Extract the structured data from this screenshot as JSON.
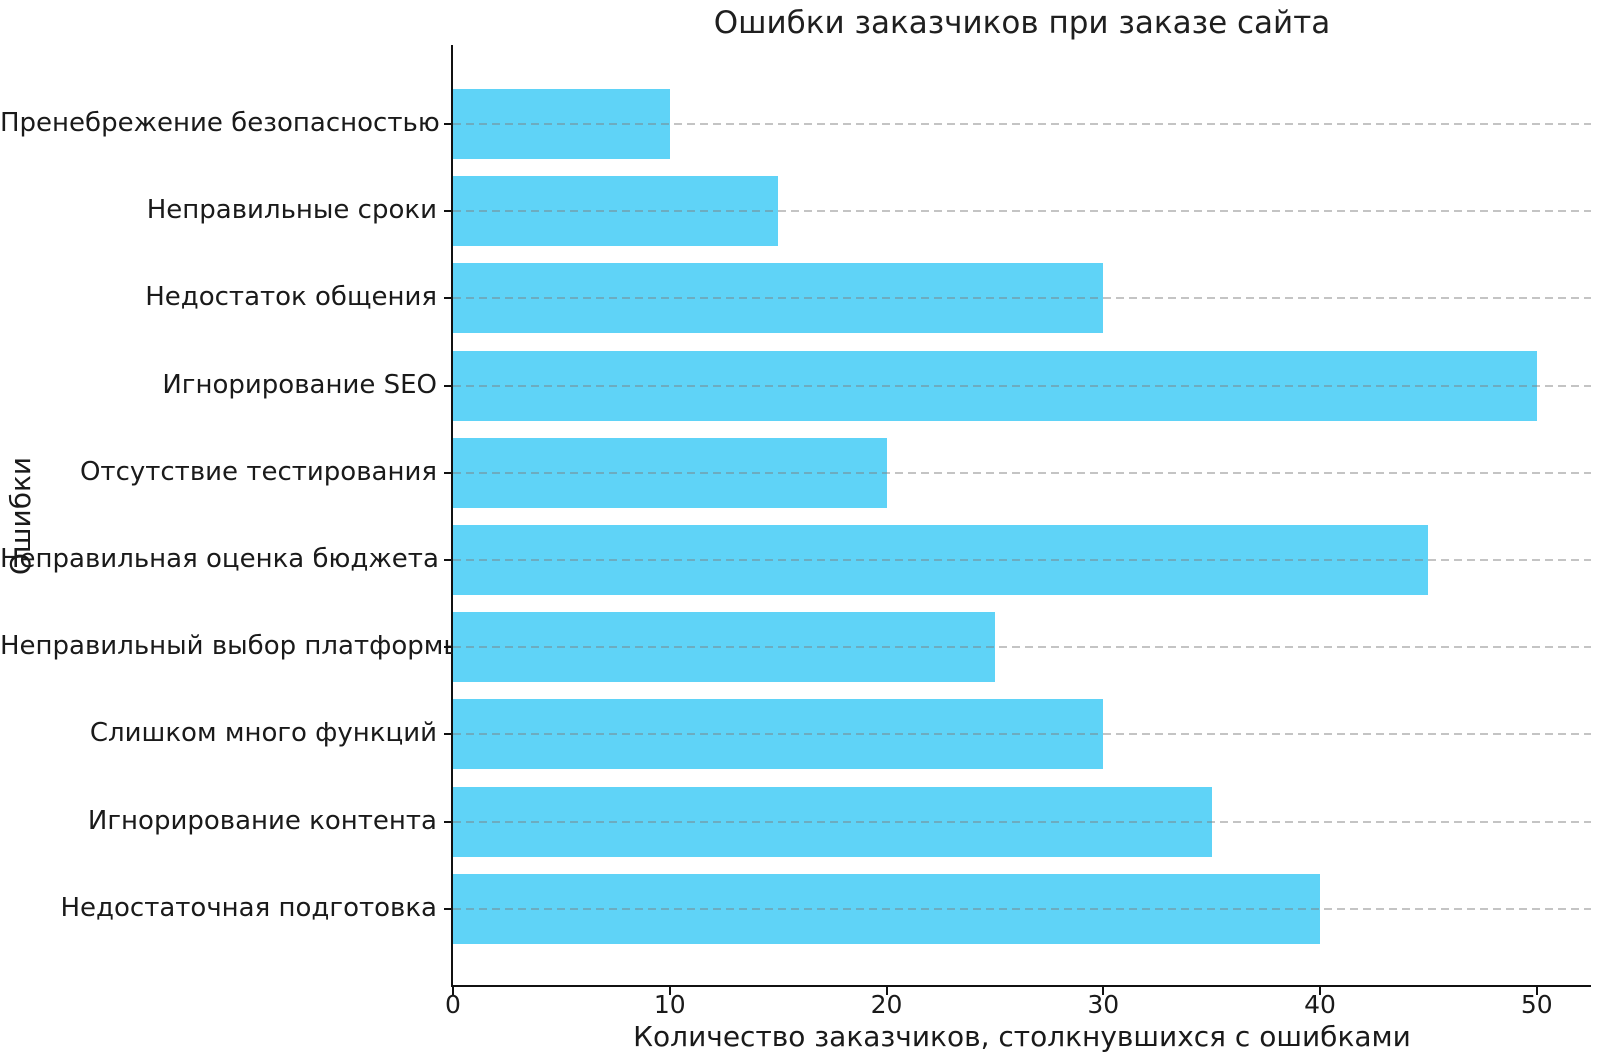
{
  "chart_data": {
    "type": "bar",
    "orientation": "horizontal",
    "title": "Ошибки заказчиков при заказе сайта",
    "xlabel": "Количество заказчиков, столкнувшихся с ошибками",
    "ylabel": "Ошибки",
    "categories": [
      "Пренебрежение безопасностью",
      "Неправильные сроки",
      "Недостаток общения",
      "Игнорирование SEO",
      "Отсутствие тестирования",
      "Неправильная оценка бюджета",
      "Неправильный выбор платформы",
      "Слишком много функций",
      "Игнорирование контента",
      "Недостаточная подготовка"
    ],
    "values": [
      10,
      15,
      30,
      50,
      20,
      45,
      25,
      30,
      35,
      40
    ],
    "xticks": [
      "0",
      "10",
      "20",
      "30",
      "40",
      "50"
    ],
    "xtick_values": [
      0,
      10,
      20,
      30,
      40,
      50
    ],
    "xlim": [
      0,
      52.5
    ],
    "bar_color": "#5FD3F7",
    "grid": "horizontal-dashed",
    "grid_color": "#c9c9c9",
    "background": "#ffffff",
    "legend": "none"
  }
}
